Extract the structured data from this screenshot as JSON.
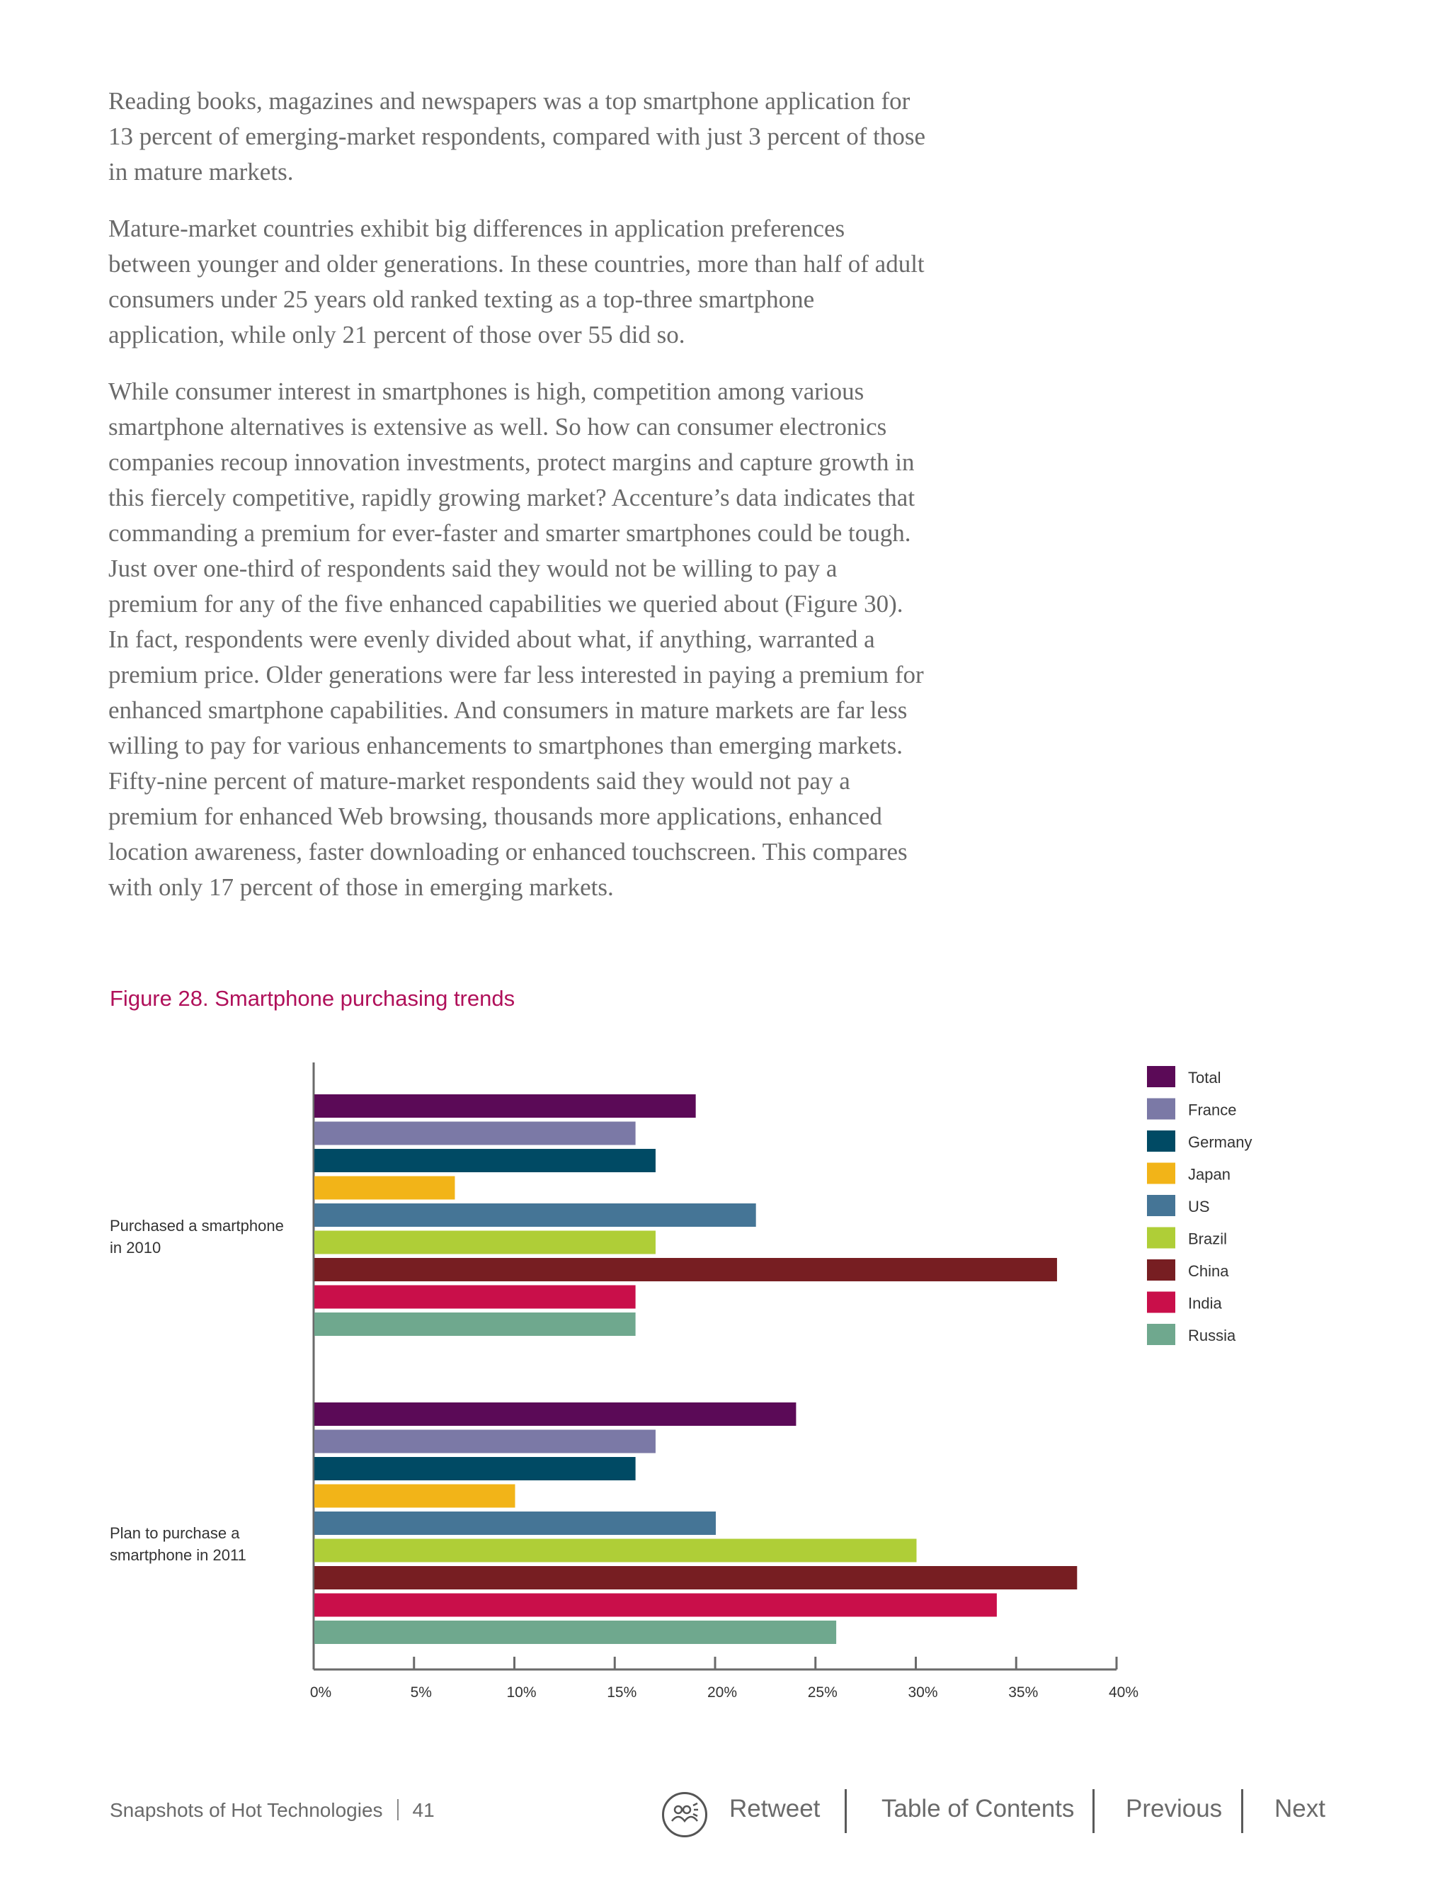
{
  "body_paragraphs": [
    "Reading books, magazines and newspapers was a top smartphone application for 13 percent of emerging-market respondents, compared with just 3 percent of those in mature markets.",
    "Mature-market countries exhibit big differences in application preferences between younger and older generations. In these countries, more than half of adult consumers under 25 years old ranked texting as a top-three smartphone application, while only 21 percent of those over 55 did so.",
    "While consumer interest in smartphones is high, competition among various smartphone alternatives is extensive as well. So how can consumer electronics companies recoup innovation investments, protect margins and capture growth in this fiercely competitive, rapidly growing market? Accenture’s data indicates that commanding a premium for ever-faster and smarter smartphones could be tough. Just over one-third of respondents said they would not be willing to pay a premium for any of the five enhanced capabilities we queried about (Figure 30). In fact, respondents were evenly divided about what, if anything, warranted a premium price. Older generations were far less interested in paying a premium for enhanced smartphone capabilities. And consumers in mature markets are far less willing to pay for various enhancements to smartphones than emerging markets. Fifty-nine percent of mature-market respondents said they would not pay a premium for enhanced Web browsing, thousands more applications, enhanced location awareness, faster downloading or enhanced touchscreen. This compares with only 17 percent of those in emerging markets."
  ],
  "figure_title": "Figure 28. Smartphone purchasing trends",
  "chart_data": {
    "type": "bar",
    "orientation": "horizontal",
    "title": "Figure 28. Smartphone purchasing trends",
    "categories": [
      "Purchased a smartphone in 2010",
      "Plan to purchase a smartphone in 2011"
    ],
    "category_lines": [
      [
        "Purchased a smartphone",
        "in 2010"
      ],
      [
        "Plan to purchase a",
        "smartphone in 2011"
      ]
    ],
    "series": [
      {
        "name": "Total",
        "color": "#5b0a57",
        "values": [
          19,
          24
        ]
      },
      {
        "name": "France",
        "color": "#7b79a6",
        "values": [
          16,
          17
        ]
      },
      {
        "name": "Germany",
        "color": "#004a64",
        "values": [
          17,
          16
        ]
      },
      {
        "name": "Japan",
        "color": "#f2b418",
        "values": [
          7,
          10
        ]
      },
      {
        "name": "US",
        "color": "#457596",
        "values": [
          22,
          20
        ]
      },
      {
        "name": "Brazil",
        "color": "#afce37",
        "values": [
          17,
          30
        ]
      },
      {
        "name": "China",
        "color": "#771e22",
        "values": [
          37,
          38
        ]
      },
      {
        "name": "India",
        "color": "#c90f4a",
        "values": [
          16,
          34
        ]
      },
      {
        "name": "Russia",
        "color": "#6fa88e",
        "values": [
          16,
          26
        ]
      }
    ],
    "xlim": [
      0,
      40
    ],
    "xticks": [
      0,
      5,
      10,
      15,
      20,
      25,
      30,
      35,
      40
    ],
    "xtick_labels": [
      "0%",
      "5%",
      "10%",
      "15%",
      "20%",
      "25%",
      "30%",
      "35%",
      "40%"
    ],
    "xlabel": "",
    "ylabel": "",
    "legend_position": "top-right",
    "grid": false
  },
  "footer": {
    "doc_title": "Snapshots of Hot Technologies",
    "page_number": "41",
    "retweet": "Retweet",
    "toc": "Table of Contents",
    "previous": "Previous",
    "next": "Next"
  },
  "icons": {
    "retweet": "people-retweet-icon"
  }
}
